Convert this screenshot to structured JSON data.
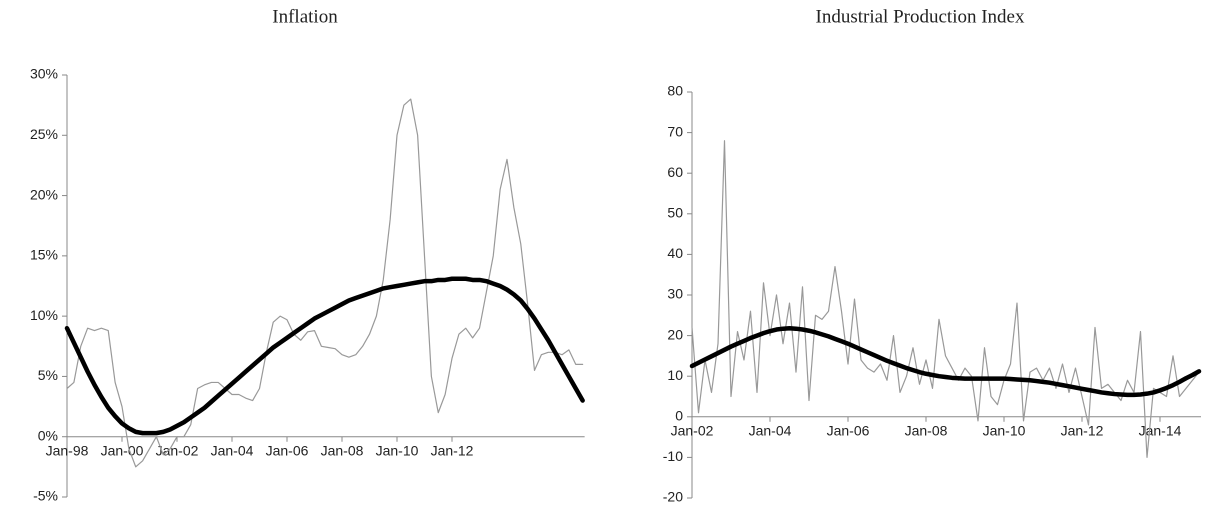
{
  "chart_data": [
    {
      "type": "line",
      "title": "Inflation",
      "categories": [
        "Jan-98",
        null,
        null,
        null,
        null,
        null,
        null,
        null,
        "Jan-00",
        null,
        null,
        null,
        null,
        null,
        null,
        null,
        "Jan-02",
        null,
        null,
        null,
        null,
        null,
        null,
        null,
        "Jan-04",
        null,
        null,
        null,
        null,
        null,
        null,
        null,
        "Jan-06",
        null,
        null,
        null,
        null,
        null,
        null,
        null,
        "Jan-08",
        null,
        null,
        null,
        null,
        null,
        null,
        null,
        "Jan-10",
        null,
        null,
        null,
        null,
        null,
        null,
        null,
        "Jan-12",
        null,
        null,
        null,
        null,
        null,
        null,
        null,
        null,
        null,
        null,
        null,
        null,
        null,
        null,
        null,
        null,
        null,
        null,
        null
      ],
      "series": [
        {
          "color": "#999999",
          "values": [
            4,
            4.5,
            7.5,
            9,
            8.8,
            9,
            8.8,
            4.5,
            2.5,
            -1,
            -2.5,
            -2,
            -1,
            0,
            -1.5,
            -1,
            0,
            0,
            1,
            4,
            4.3,
            4.5,
            4.5,
            4,
            3.5,
            3.5,
            3.2,
            3,
            4,
            7,
            9.5,
            10,
            9.7,
            8.5,
            8,
            8.7,
            8.8,
            7.5,
            7.4,
            7.3,
            6.8,
            6.6,
            6.8,
            7.5,
            8.5,
            10,
            13,
            18,
            25,
            27.5,
            28,
            25,
            15,
            5,
            2,
            3.5,
            6.5,
            8.5,
            9,
            8.2,
            9,
            12,
            15,
            20.5,
            23,
            19,
            16,
            11,
            5.5,
            6.8,
            7,
            7,
            6.8,
            7.2,
            6,
            6
          ]
        },
        {
          "color": "#000000",
          "values": [
            9,
            7.8,
            6.6,
            5.4,
            4.3,
            3.3,
            2.4,
            1.7,
            1.1,
            0.7,
            0.4,
            0.3,
            0.3,
            0.3,
            0.4,
            0.6,
            0.9,
            1.2,
            1.6,
            2.0,
            2.4,
            2.9,
            3.4,
            3.9,
            4.4,
            4.9,
            5.4,
            5.9,
            6.4,
            6.9,
            7.4,
            7.8,
            8.2,
            8.6,
            9.0,
            9.4,
            9.8,
            10.1,
            10.4,
            10.7,
            11.0,
            11.3,
            11.5,
            11.7,
            11.9,
            12.1,
            12.3,
            12.4,
            12.5,
            12.6,
            12.7,
            12.8,
            12.9,
            12.9,
            13.0,
            13.0,
            13.1,
            13.1,
            13.1,
            13.0,
            13.0,
            12.9,
            12.7,
            12.5,
            12.2,
            11.8,
            11.3,
            10.6,
            9.8,
            8.9,
            8.0,
            7.0,
            6.0,
            5.0,
            4.0,
            3.0
          ]
        }
      ],
      "ylim": [
        -5,
        30
      ],
      "yticks": [
        {
          "value": -5,
          "label": "-5%"
        },
        {
          "value": 0,
          "label": "0%"
        },
        {
          "value": 5,
          "label": "5%"
        },
        {
          "value": 10,
          "label": "10%"
        },
        {
          "value": 15,
          "label": "15%"
        },
        {
          "value": 20,
          "label": "20%"
        },
        {
          "value": 25,
          "label": "25%"
        },
        {
          "value": 30,
          "label": "30%"
        }
      ]
    },
    {
      "type": "line",
      "title": "Industrial Production Index",
      "categories": [
        "Jan-02",
        null,
        null,
        null,
        null,
        null,
        null,
        null,
        null,
        null,
        null,
        null,
        "Jan-04",
        null,
        null,
        null,
        null,
        null,
        null,
        null,
        null,
        null,
        null,
        null,
        "Jan-06",
        null,
        null,
        null,
        null,
        null,
        null,
        null,
        null,
        null,
        null,
        null,
        "Jan-08",
        null,
        null,
        null,
        null,
        null,
        null,
        null,
        null,
        null,
        null,
        null,
        "Jan-10",
        null,
        null,
        null,
        null,
        null,
        null,
        null,
        null,
        null,
        null,
        null,
        "Jan-12",
        null,
        null,
        null,
        null,
        null,
        null,
        null,
        null,
        null,
        null,
        null,
        "Jan-14",
        null,
        null,
        null,
        null,
        null,
        null
      ],
      "series": [
        {
          "color": "#999999",
          "values": [
            22,
            1,
            14,
            6,
            18,
            68,
            5,
            21,
            14,
            26,
            6,
            33,
            20,
            30,
            18,
            28,
            11,
            32,
            4,
            25,
            24,
            26,
            37,
            26,
            13,
            29,
            14,
            12,
            11,
            13,
            9,
            20,
            6,
            10,
            17,
            8,
            14,
            7,
            24,
            15,
            12,
            9,
            12,
            10,
            -1,
            17,
            5,
            3,
            9,
            13,
            28,
            -1,
            11,
            12,
            9,
            12,
            7,
            13,
            6,
            12,
            5,
            -2,
            22,
            7,
            8,
            6,
            4,
            9,
            6,
            21,
            -10,
            7,
            6,
            5,
            15,
            5,
            7,
            9,
            11
          ]
        },
        {
          "color": "#000000",
          "values": [
            12.5,
            13.3,
            14.1,
            14.9,
            15.7,
            16.5,
            17.3,
            18.0,
            18.7,
            19.4,
            20.0,
            20.6,
            21.1,
            21.5,
            21.7,
            21.8,
            21.7,
            21.5,
            21.2,
            20.8,
            20.3,
            19.8,
            19.2,
            18.6,
            18.0,
            17.3,
            16.6,
            15.9,
            15.2,
            14.5,
            13.8,
            13.2,
            12.6,
            12.0,
            11.5,
            11.0,
            10.6,
            10.3,
            10.0,
            9.8,
            9.6,
            9.5,
            9.4,
            9.4,
            9.4,
            9.4,
            9.4,
            9.4,
            9.4,
            9.3,
            9.2,
            9.1,
            9.0,
            8.8,
            8.6,
            8.4,
            8.1,
            7.8,
            7.5,
            7.2,
            6.9,
            6.6,
            6.3,
            6.0,
            5.8,
            5.6,
            5.5,
            5.4,
            5.4,
            5.5,
            5.7,
            6.0,
            6.5,
            7.1,
            7.8,
            8.6,
            9.5,
            10.3,
            11.2
          ]
        }
      ],
      "ylim": [
        -20,
        80
      ],
      "yticks": [
        -20,
        -10,
        0,
        10,
        20,
        30,
        40,
        50,
        60,
        70,
        80
      ]
    }
  ]
}
